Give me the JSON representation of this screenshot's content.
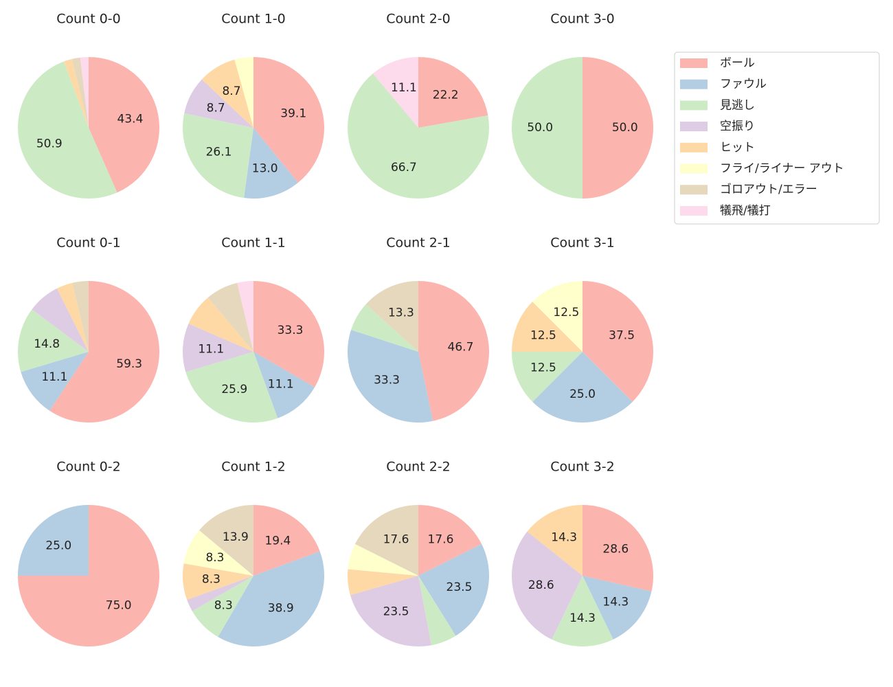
{
  "legend": {
    "entries": [
      {
        "name": "ボール",
        "color": "#fbb4ae"
      },
      {
        "name": "ファウル",
        "color": "#b3cde3"
      },
      {
        "name": "見逃し",
        "color": "#ccebc5"
      },
      {
        "name": "空振り",
        "color": "#decbe4"
      },
      {
        "name": "ヒット",
        "color": "#fed9a6"
      },
      {
        "name": "フライ/ライナー アウト",
        "color": "#ffffcc"
      },
      {
        "name": "ゴロアウト/エラー",
        "color": "#e5d8bd"
      },
      {
        "name": "犠飛/犠打",
        "color": "#fddaec"
      }
    ]
  },
  "chart_data": [
    {
      "type": "pie",
      "title": "Count 0-0",
      "categories": [
        "ボール",
        "見逃し",
        "ヒット",
        "ゴロアウト/エラー",
        "犠飛/犠打"
      ],
      "values": [
        43.4,
        50.9,
        1.9,
        1.9,
        1.9
      ],
      "value_labels": [
        "43.4",
        "50.9",
        null,
        null,
        null
      ]
    },
    {
      "type": "pie",
      "title": "Count 1-0",
      "categories": [
        "ボール",
        "ファウル",
        "見逃し",
        "空振り",
        "ヒット",
        "フライ/ライナー アウト"
      ],
      "values": [
        39.1,
        13.0,
        26.1,
        8.7,
        8.7,
        4.3
      ],
      "value_labels": [
        "39.1",
        "13.0",
        "26.1",
        "8.7",
        "8.7",
        null
      ]
    },
    {
      "type": "pie",
      "title": "Count 2-0",
      "categories": [
        "ボール",
        "見逃し",
        "犠飛/犠打"
      ],
      "values": [
        22.2,
        66.7,
        11.1
      ],
      "value_labels": [
        "22.2",
        "66.7",
        "11.1"
      ]
    },
    {
      "type": "pie",
      "title": "Count 3-0",
      "categories": [
        "ボール",
        "見逃し"
      ],
      "values": [
        50,
        50
      ],
      "value_labels": [
        "50.0",
        "50.0"
      ]
    },
    {
      "type": "pie",
      "title": "Count 0-1",
      "categories": [
        "ボール",
        "ファウル",
        "見逃し",
        "空振り",
        "ヒット",
        "ゴロアウト/エラー"
      ],
      "values": [
        59.3,
        11.1,
        14.8,
        7.4,
        3.7,
        3.7
      ],
      "value_labels": [
        "59.3",
        "11.1",
        "14.8",
        null,
        null,
        null
      ]
    },
    {
      "type": "pie",
      "title": "Count 1-1",
      "categories": [
        "ボール",
        "ファウル",
        "見逃し",
        "空振り",
        "ヒット",
        "ゴロアウト/エラー",
        "犠飛/犠打"
      ],
      "values": [
        33.3,
        11.1,
        25.9,
        11.1,
        7.4,
        7.4,
        3.7
      ],
      "value_labels": [
        "33.3",
        "11.1",
        "25.9",
        "11.1",
        null,
        null,
        null
      ]
    },
    {
      "type": "pie",
      "title": "Count 2-1",
      "categories": [
        "ボール",
        "ファウル",
        "見逃し",
        "ゴロアウト/エラー"
      ],
      "values": [
        46.7,
        33.3,
        6.7,
        13.3
      ],
      "value_labels": [
        "46.7",
        "33.3",
        null,
        "13.3"
      ]
    },
    {
      "type": "pie",
      "title": "Count 3-1",
      "categories": [
        "ボール",
        "ファウル",
        "見逃し",
        "ヒット",
        "フライ/ライナー アウト"
      ],
      "values": [
        37.5,
        25,
        12.5,
        12.5,
        12.5
      ],
      "value_labels": [
        "37.5",
        "25.0",
        "12.5",
        "12.5",
        "12.5"
      ]
    },
    {
      "type": "pie",
      "title": "Count 0-2",
      "categories": [
        "ボール",
        "ファウル"
      ],
      "values": [
        75,
        25
      ],
      "value_labels": [
        "75.0",
        "25.0"
      ]
    },
    {
      "type": "pie",
      "title": "Count 1-2",
      "categories": [
        "ボール",
        "ファウル",
        "見逃し",
        "空振り",
        "ヒット",
        "フライ/ライナー アウト",
        "ゴロアウト/エラー"
      ],
      "values": [
        19.4,
        38.9,
        8.3,
        2.8,
        8.3,
        8.3,
        13.9
      ],
      "value_labels": [
        "19.4",
        "38.9",
        "8.3",
        null,
        "8.3",
        "8.3",
        "13.9"
      ]
    },
    {
      "type": "pie",
      "title": "Count 2-2",
      "categories": [
        "ボール",
        "ファウル",
        "見逃し",
        "空振り",
        "ヒット",
        "フライ/ライナー アウト",
        "ゴロアウト/エラー"
      ],
      "values": [
        17.6,
        23.5,
        5.9,
        23.5,
        5.9,
        5.9,
        17.6
      ],
      "value_labels": [
        "17.6",
        "23.5",
        null,
        "23.5",
        null,
        null,
        "17.6"
      ]
    },
    {
      "type": "pie",
      "title": "Count 3-2",
      "categories": [
        "ボール",
        "ファウル",
        "見逃し",
        "空振り",
        "ヒット"
      ],
      "values": [
        28.6,
        14.3,
        14.3,
        28.6,
        14.3
      ],
      "value_labels": [
        "28.6",
        "14.3",
        "14.3",
        "28.6",
        "14.3"
      ]
    }
  ]
}
